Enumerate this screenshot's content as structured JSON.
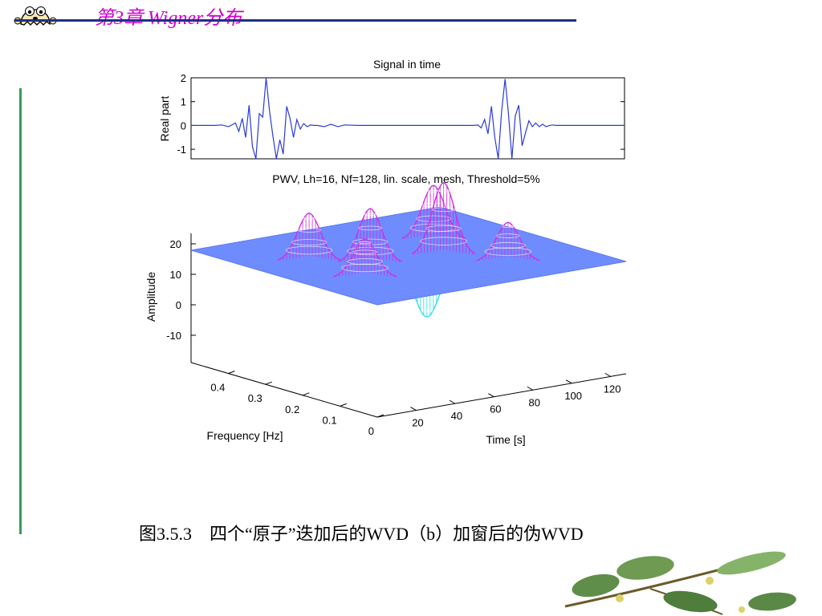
{
  "header": {
    "title": "第3章  Wigner分布",
    "mascot_icon": "ghost-mascot-icon"
  },
  "caption": "图3.5.3　四个“原子”迭加后的WVD（b）加窗后的伪WVD",
  "colors": {
    "header_title": "#cc00cc",
    "header_rule": "#1e2f8a",
    "left_rule": "#3a9a5a",
    "signal_line": "#2b3bd6",
    "floor": "#6f8cff",
    "peak": "#cc33dd",
    "negative_lobe": "#33ddee"
  },
  "chart_data": [
    {
      "type": "line",
      "title": "Signal in time",
      "ylabel": "Real part",
      "xlim": [
        1,
        128
      ],
      "ylim": [
        -1.4,
        2
      ],
      "yticks": [
        "2",
        "1",
        "0",
        "-1"
      ],
      "ytick_values": [
        2,
        1,
        0,
        -1
      ],
      "series": [
        {
          "x": [
            1,
            4,
            8,
            10,
            12,
            14,
            15,
            16,
            17,
            18,
            19,
            20,
            21,
            22,
            23,
            24,
            25,
            26,
            27,
            28,
            29,
            30,
            31,
            32,
            33,
            34,
            35,
            36,
            37,
            38,
            40,
            42,
            44,
            46,
            50,
            56,
            60,
            66,
            70,
            76,
            80,
            84,
            85,
            86,
            87,
            88,
            89,
            90,
            91,
            92,
            93,
            94,
            95,
            96,
            97,
            98,
            99,
            100,
            101,
            102,
            103,
            104,
            105,
            106,
            107,
            108,
            109,
            110,
            112,
            114,
            116,
            120,
            124,
            128
          ],
          "y": [
            0,
            0,
            0,
            0.02,
            -0.05,
            0.1,
            -0.25,
            0.3,
            -0.5,
            0.85,
            -0.9,
            -1.4,
            0.5,
            0.35,
            2,
            0.6,
            -0.45,
            -1.4,
            -0.6,
            -1.2,
            0.8,
            0.3,
            -0.5,
            0.25,
            -0.15,
            0.08,
            -0.05,
            0.02,
            0,
            0,
            -0.05,
            0.05,
            -0.05,
            0.02,
            0,
            0,
            0,
            0,
            0,
            0,
            0,
            0,
            0.02,
            -0.1,
            0.25,
            -0.35,
            0.8,
            -0.5,
            -1.4,
            0.6,
            1.95,
            0.5,
            -1.4,
            0.4,
            0.85,
            -0.85,
            -0.3,
            0.2,
            -0.05,
            0.1,
            -0.05,
            0.05,
            -0.05,
            0,
            0.02,
            0,
            0,
            0,
            0,
            0,
            0,
            0,
            0,
            0
          ]
        }
      ]
    },
    {
      "type": "surface",
      "title": "PWV, Lh=16, Nf=128, lin. scale, mesh, Threshold=5%",
      "xlabel": "Time [s]",
      "ylabel": "Frequency [Hz]",
      "zlabel": "Amplitude",
      "xticks": [
        "20",
        "40",
        "60",
        "80",
        "100",
        "120"
      ],
      "yticks": [
        "0",
        "0.1",
        "0.2",
        "0.3",
        "0.4"
      ],
      "zticks": [
        "20",
        "10",
        "0",
        "-10"
      ],
      "xlim": [
        0,
        128
      ],
      "ylim": [
        0,
        0.5
      ],
      "zlim": [
        -18,
        22
      ],
      "peaks": [
        {
          "time": 32,
          "freq": 0.2,
          "amplitude": 11
        },
        {
          "time": 32,
          "freq": 0.35,
          "amplitude": 14
        },
        {
          "time": 50,
          "freq": 0.28,
          "amplitude": 16
        },
        {
          "time": 96,
          "freq": 0.15,
          "amplitude": 11
        },
        {
          "time": 96,
          "freq": 0.35,
          "amplitude": 16
        },
        {
          "time": 82,
          "freq": 0.25,
          "amplitude": 22
        }
      ],
      "negative_lobes": [
        {
          "time": 60,
          "freq": 0.18,
          "amplitude": -17
        },
        {
          "time": 95,
          "freq": 0.08,
          "amplitude": -4
        }
      ]
    }
  ]
}
